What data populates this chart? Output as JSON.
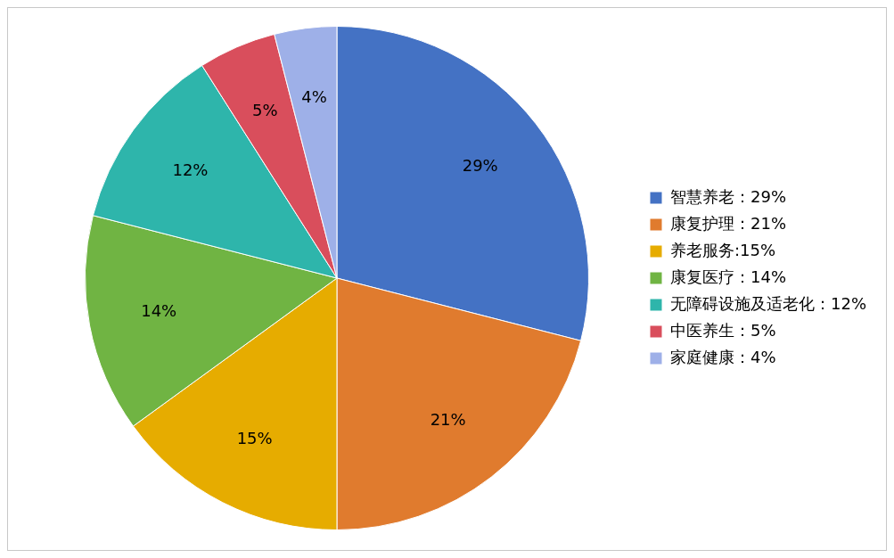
{
  "chart_data": {
    "type": "pie",
    "categories": [
      "智慧养老：29%",
      "康复护理：21%",
      "养老服务:15%",
      "康复医疗：14%",
      "无障碍设施及适老化：12%",
      "中医养生：5%",
      "家庭健康：4%"
    ],
    "values": [
      29,
      21,
      15,
      14,
      12,
      5,
      4
    ],
    "colors": [
      "#4472c4",
      "#e07b2e",
      "#e6ac00",
      "#70b443",
      "#2eb5ab",
      "#d94e5c",
      "#9eb0e8"
    ],
    "value_labels": [
      "29%",
      "21%",
      "15%",
      "14%",
      "12%",
      "5%",
      "4%"
    ],
    "legend": "right"
  }
}
